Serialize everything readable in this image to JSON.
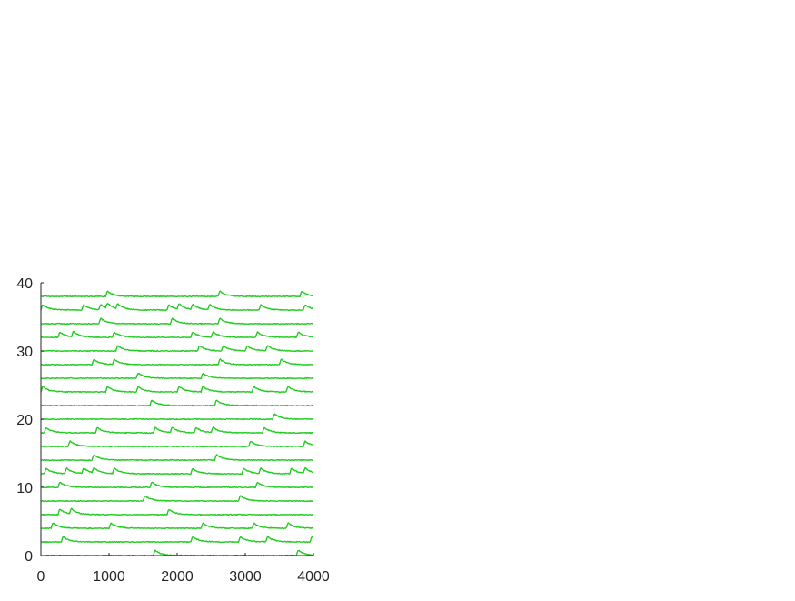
{
  "chart_data": {
    "type": "line",
    "title": "",
    "xlabel": "",
    "ylabel": "",
    "xlim": [
      0,
      4000
    ],
    "ylim": [
      0,
      40
    ],
    "xticks": [
      0,
      1000,
      2000,
      3000,
      4000
    ],
    "yticks": [
      0,
      10,
      20,
      30,
      40
    ],
    "xtick_labels": [
      "0",
      "1000",
      "2000",
      "3000",
      "4000"
    ],
    "ytick_labels": [
      "0",
      "10",
      "20",
      "30",
      "40"
    ],
    "grid": false,
    "legend": "none",
    "color": "#22cc22",
    "baseline_spacing": 2,
    "peak_amplitude": 0.8,
    "series": [
      {
        "baseline": 0,
        "events": [
          1650,
          3750
        ]
      },
      {
        "baseline": 2,
        "events": [
          300,
          2200,
          2900,
          3300,
          3950
        ]
      },
      {
        "baseline": 4,
        "events": [
          150,
          1000,
          2350,
          3100,
          3600
        ]
      },
      {
        "baseline": 6,
        "events": [
          250,
          420,
          1850
        ]
      },
      {
        "baseline": 8,
        "events": [
          1500,
          2900
        ]
      },
      {
        "baseline": 10,
        "events": [
          250,
          1600,
          3150
        ]
      },
      {
        "baseline": 12,
        "events": [
          50,
          350,
          600,
          750,
          1050,
          2200,
          2950,
          3200,
          3650,
          3850
        ]
      },
      {
        "baseline": 14,
        "events": [
          750,
          2550
        ]
      },
      {
        "baseline": 16,
        "events": [
          400,
          3050,
          3850
        ]
      },
      {
        "baseline": 18,
        "events": [
          50,
          800,
          1650,
          1900,
          2250,
          2500,
          3250,
          4000
        ]
      },
      {
        "baseline": 20,
        "events": [
          3400
        ]
      },
      {
        "baseline": 22,
        "events": [
          1600,
          2550
        ]
      },
      {
        "baseline": 24,
        "events": [
          0,
          950,
          1400,
          2000,
          2350,
          3100,
          3600
        ]
      },
      {
        "baseline": 26,
        "events": [
          1400,
          2350
        ]
      },
      {
        "baseline": 28,
        "events": [
          750,
          1050,
          2600,
          3500
        ]
      },
      {
        "baseline": 30,
        "events": [
          1100,
          2300,
          2650,
          3000,
          3300
        ]
      },
      {
        "baseline": 32,
        "events": [
          250,
          450,
          1050,
          2200,
          2500,
          3150,
          3750
        ]
      },
      {
        "baseline": 34,
        "events": [
          850,
          1900,
          2600
        ]
      },
      {
        "baseline": 36,
        "events": [
          0,
          600,
          850,
          950,
          1100,
          1850,
          2000,
          2200,
          2450,
          3200,
          3850
        ]
      },
      {
        "baseline": 38,
        "events": [
          950,
          2600,
          3800
        ]
      }
    ]
  }
}
